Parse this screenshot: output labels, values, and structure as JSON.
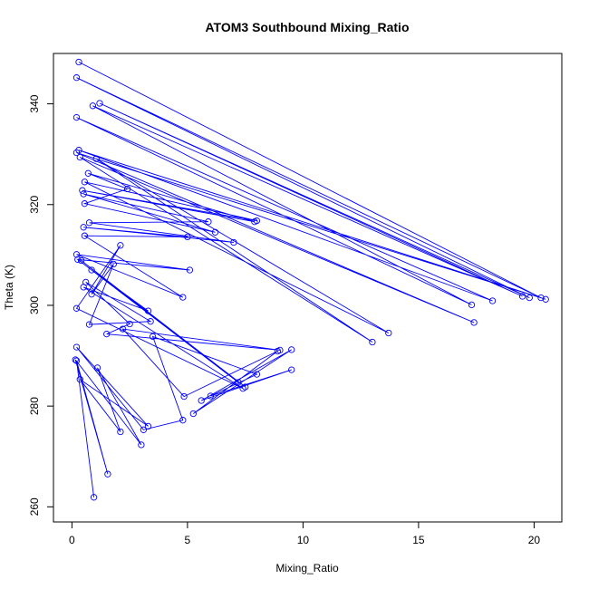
{
  "chart_data": {
    "type": "line",
    "title": "ATOM3 Southbound Mixing_Ratio",
    "xlabel": "Mixing_Ratio",
    "ylabel": "Theta (K)",
    "xlim": [
      -0.8,
      21.2
    ],
    "ylim": [
      257,
      350
    ],
    "x_ticks": [
      0,
      5,
      10,
      15,
      20
    ],
    "y_ticks": [
      260,
      280,
      300,
      320,
      340
    ],
    "grid": false,
    "legend": "none",
    "series": [
      {
        "color": "#0000ff",
        "marker": "open-circle",
        "points": [
          [
            0.3,
            348.3
          ],
          [
            20.3,
            301.5
          ],
          [
            0.2,
            345.2
          ],
          [
            19.8,
            301.5
          ],
          [
            1.2,
            340.1
          ],
          [
            19.5,
            301.8
          ],
          [
            0.9,
            339.6
          ],
          [
            17.3,
            300.1
          ],
          [
            0.2,
            337.3
          ],
          [
            18.2,
            300.9
          ],
          [
            0.3,
            330.8
          ],
          [
            20.5,
            301.2
          ],
          [
            0.2,
            330.3
          ],
          [
            17.4,
            296.6
          ],
          [
            0.35,
            329.4
          ],
          [
            13.0,
            292.7
          ],
          [
            1.05,
            329.1
          ],
          [
            13.7,
            294.5
          ],
          [
            0.55,
            324.5
          ],
          [
            8.0,
            316.8
          ],
          [
            0.45,
            322.8
          ],
          [
            7.9,
            316.6
          ],
          [
            0.7,
            326.2
          ],
          [
            2.4,
            323.1
          ],
          [
            0.55,
            320.2
          ],
          [
            6.2,
            314.5
          ],
          [
            0.5,
            322.1
          ],
          [
            5.9,
            316.6
          ],
          [
            0.75,
            316.4
          ],
          [
            7.0,
            312.5
          ],
          [
            0.5,
            315.5
          ],
          [
            5.0,
            313.6
          ],
          [
            0.55,
            313.8
          ],
          [
            4.8,
            301.6
          ],
          [
            0.2,
            310.1
          ],
          [
            5.1,
            307.0
          ],
          [
            0.25,
            309.1
          ],
          [
            7.2,
            284.7
          ],
          [
            0.4,
            308.9
          ],
          [
            7.5,
            283.8
          ],
          [
            0.85,
            307.0
          ],
          [
            3.3,
            298.9
          ],
          [
            0.5,
            303.6
          ],
          [
            7.4,
            283.5
          ],
          [
            0.2,
            299.4
          ],
          [
            2.1,
            311.9
          ],
          [
            0.85,
            302.2
          ],
          [
            1.8,
            308.2
          ],
          [
            0.75,
            296.2
          ],
          [
            3.4,
            296.8
          ],
          [
            0.6,
            304.6
          ],
          [
            2.5,
            296.3
          ],
          [
            1.5,
            294.3
          ],
          [
            9.0,
            291.1
          ],
          [
            2.2,
            295.3
          ],
          [
            4.85,
            281.9
          ],
          [
            8.9,
            290.9
          ],
          [
            5.25,
            278.5
          ],
          [
            9.5,
            291.2
          ],
          [
            5.6,
            281.1
          ],
          [
            9.5,
            287.2
          ],
          [
            6.0,
            282.0
          ],
          [
            8.0,
            286.3
          ],
          [
            3.5,
            293.8
          ],
          [
            4.8,
            277.2
          ],
          [
            3.1,
            275.3
          ],
          [
            0.2,
            291.7
          ],
          [
            3.3,
            276.0
          ],
          [
            0.35,
            285.3
          ],
          [
            2.1,
            274.9
          ],
          [
            1.1,
            287.6
          ],
          [
            3.0,
            272.3
          ],
          [
            0.15,
            289.2
          ],
          [
            1.55,
            266.5
          ],
          [
            0.2,
            289.0
          ],
          [
            0.95,
            261.9
          ]
        ]
      }
    ]
  }
}
